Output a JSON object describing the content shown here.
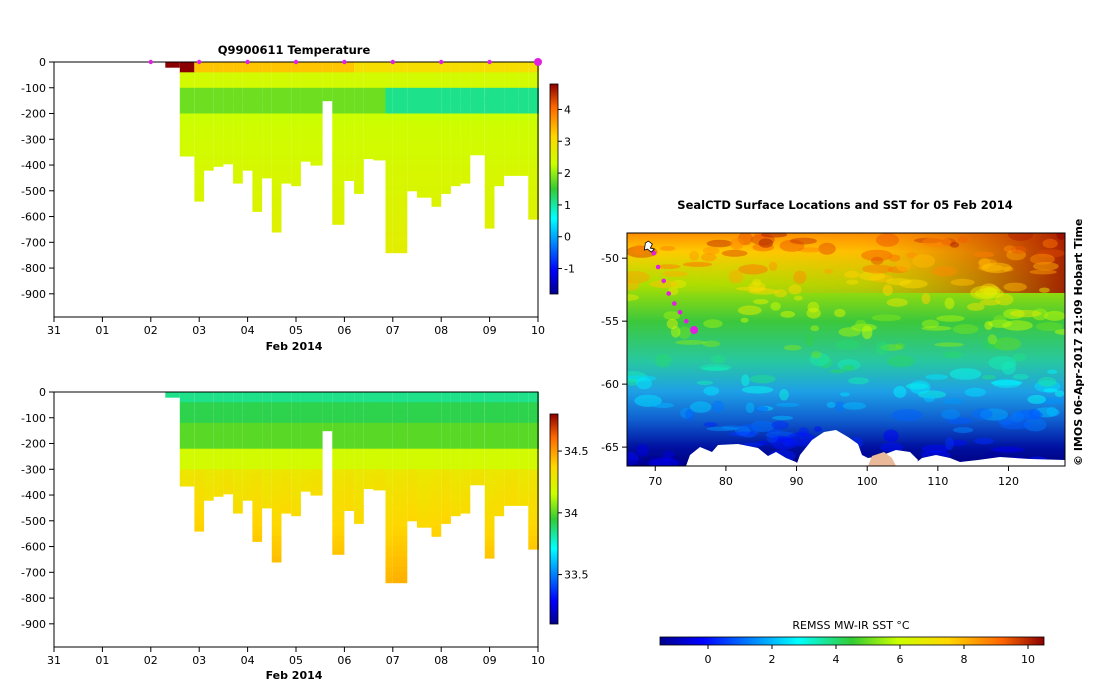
{
  "chart_data": [
    {
      "type": "heatmap",
      "title": "Q9900611  Temperature",
      "variable": "temperature",
      "xlabel": "Feb 2014",
      "x_ticks": [
        "31",
        "01",
        "02",
        "03",
        "04",
        "05",
        "06",
        "07",
        "08",
        "09",
        "10"
      ],
      "y_ticks": [
        "0",
        "-100",
        "-200",
        "-300",
        "-400",
        "-500",
        "-600",
        "-700",
        "-800",
        "-900"
      ],
      "ylim": [
        -990,
        0
      ],
      "colorbar_ticks": [
        "4",
        "3",
        "2",
        "1",
        "0",
        "-1"
      ],
      "colorbar_range": [
        -1.8,
        4.8
      ],
      "profile_marker_days": [
        2,
        3,
        4,
        5,
        6,
        7,
        8,
        9,
        10
      ],
      "profile_start_days": [
        2.3,
        2.6,
        2.9,
        3.1,
        3.3,
        3.5,
        3.7,
        3.9,
        4.1,
        4.3,
        4.5,
        4.7,
        4.9,
        5.1,
        5.3,
        5.55,
        5.75,
        6.0,
        6.2,
        6.4,
        6.6,
        6.85,
        7.0,
        7.3,
        7.5,
        7.8,
        8.0,
        8.2,
        8.4,
        8.6,
        8.9,
        9.1,
        9.3,
        9.6,
        9.8,
        10.0
      ],
      "profile_depths_m": [
        20,
        365,
        540,
        420,
        405,
        395,
        470,
        420,
        580,
        450,
        660,
        470,
        480,
        385,
        400,
        150,
        630,
        460,
        510,
        375,
        380,
        740,
        740,
        500,
        525,
        560,
        510,
        480,
        470,
        360,
        645,
        480,
        440,
        440,
        610,
        610
      ]
    },
    {
      "type": "heatmap",
      "title": "",
      "variable": "salinity",
      "xlabel": "Feb 2014",
      "x_ticks": [
        "31",
        "01",
        "02",
        "03",
        "04",
        "05",
        "06",
        "07",
        "08",
        "09",
        "10"
      ],
      "y_ticks": [
        "0",
        "-100",
        "-200",
        "-300",
        "-400",
        "-500",
        "-600",
        "-700",
        "-800",
        "-900"
      ],
      "ylim": [
        -990,
        0
      ],
      "colorbar_ticks": [
        "34.5",
        "34",
        "33.5"
      ],
      "colorbar_range": [
        33.1,
        34.8
      ]
    },
    {
      "type": "heatmap",
      "title": "SealCTD Surface Locations and SST for 05 Feb 2014",
      "x_ticks": [
        "70",
        "80",
        "90",
        "100",
        "110",
        "120"
      ],
      "y_ticks": [
        "-50",
        "-55",
        "-60",
        "-65"
      ],
      "xlim": [
        66,
        128
      ],
      "ylim": [
        -66.5,
        -48
      ],
      "track_points": [
        [
          69.0,
          -49.1
        ],
        [
          69.8,
          -49.6
        ],
        [
          70.4,
          -50.7
        ],
        [
          71.2,
          -51.8
        ],
        [
          71.9,
          -52.8
        ],
        [
          72.7,
          -53.6
        ],
        [
          73.5,
          -54.3
        ],
        [
          74.4,
          -55.0
        ],
        [
          75.5,
          -55.7
        ]
      ],
      "colorbar_label": "REMSS MW-IR SST °C",
      "colorbar_ticks": [
        "0",
        "2",
        "4",
        "6",
        "8",
        "10"
      ],
      "colorbar_range": [
        -1.5,
        10.5
      ],
      "side_label": "© IMOS 06-Apr-2017 21:09 Hobart Time"
    }
  ]
}
